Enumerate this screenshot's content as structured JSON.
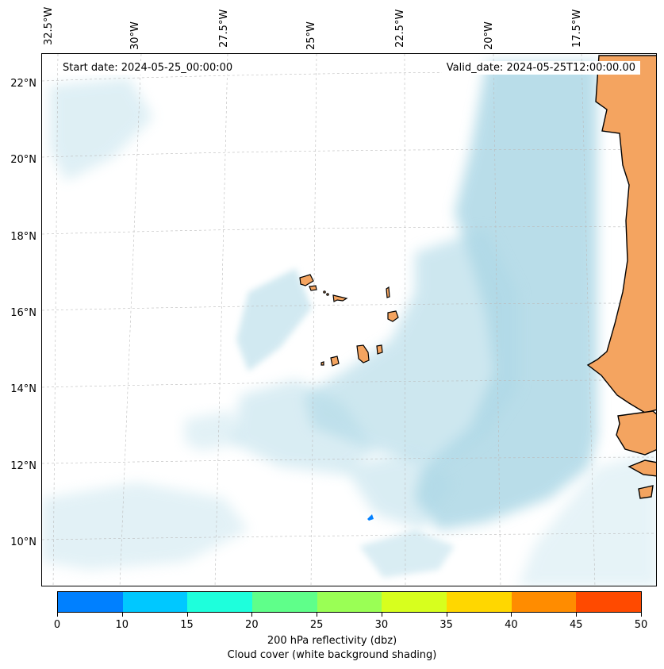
{
  "map": {
    "start_date": "Start date: 2024-05-25_00:00:00",
    "valid_date": "Valid_date: 2024-05-25T12:00:00.00",
    "lon_labels": [
      "32.5°W",
      "30°W",
      "27.5°W",
      "25°W",
      "22.5°W",
      "20°W",
      "17.5°W"
    ],
    "lat_labels": [
      "22°N",
      "20°N",
      "18°N",
      "16°N",
      "14°N",
      "12°N",
      "10°N"
    ],
    "colors": {
      "land": "#f4a460",
      "land_outline": "#000000",
      "cloud": "#add8e6",
      "reflectivity_cell": "#0080ff",
      "grid": "#bbbbbb"
    }
  },
  "colorbar": {
    "ticks": [
      "0",
      "10",
      "15",
      "20",
      "25",
      "30",
      "35",
      "40",
      "45",
      "50"
    ],
    "colors": [
      "#0080ff",
      "#00c8ff",
      "#1effdc",
      "#5fff8a",
      "#9aff55",
      "#d7ff1e",
      "#ffd700",
      "#ff8c00",
      "#ff4a00"
    ],
    "label_line1": "200 hPa reflectivity (dbz)",
    "label_line2": "Cloud cover (white background shading)"
  }
}
